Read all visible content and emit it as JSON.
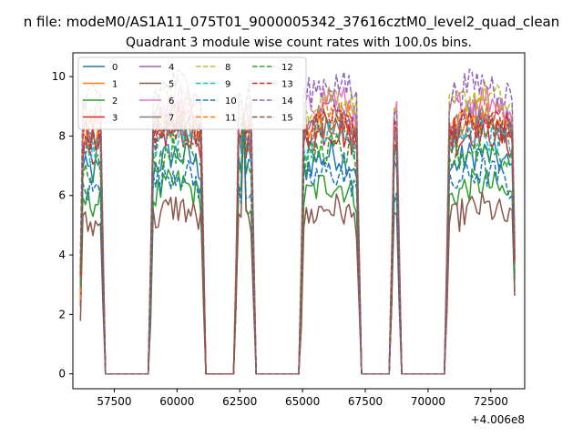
{
  "suptitle": "n file: modeM0/AS1A11_075T01_9000005342_37616cztM0_level2_quad_clean",
  "chart_data": {
    "type": "line",
    "title": "Quadrant 3 module wise count rates with 100.0s bins.",
    "xlabel": "",
    "ylabel": "",
    "x_offset_label": "+4.006e8",
    "xlim": [
      55850,
      73850
    ],
    "ylim": [
      -0.5,
      10.8
    ],
    "xticks": [
      57500,
      60000,
      62500,
      65000,
      67500,
      70000,
      72500
    ],
    "yticks": [
      0,
      2,
      4,
      6,
      8,
      10
    ],
    "grid": false,
    "legend": {
      "placement": "top-left",
      "columns": 4
    },
    "gti_intervals": [
      [
        56150,
        57100
      ],
      [
        58900,
        61050
      ],
      [
        62300,
        63050
      ],
      [
        64950,
        67300
      ],
      [
        68550,
        68850
      ],
      [
        70750,
        73450
      ]
    ],
    "spikes": [
      {
        "x": 62650,
        "y": 8.6
      },
      {
        "x": 68700,
        "y": 8.9
      }
    ],
    "series": [
      {
        "name": "0",
        "color": "#1f77b4",
        "dash": false,
        "level": 6.8
      },
      {
        "name": "1",
        "color": "#ff7f0e",
        "dash": false,
        "level": 7.9
      },
      {
        "name": "2",
        "color": "#2ca02c",
        "dash": false,
        "level": 5.8
      },
      {
        "name": "3",
        "color": "#d62728",
        "dash": false,
        "level": 7.6
      },
      {
        "name": "4",
        "color": "#9467bd",
        "dash": false,
        "level": 8.3
      },
      {
        "name": "5",
        "color": "#8c564b",
        "dash": false,
        "level": 5.0
      },
      {
        "name": "6",
        "color": "#e377c2",
        "dash": false,
        "level": 8.7
      },
      {
        "name": "7",
        "color": "#7f7f7f",
        "dash": false,
        "level": 8.0
      },
      {
        "name": "8",
        "color": "#bcbd22",
        "dash": true,
        "level": 8.8
      },
      {
        "name": "9",
        "color": "#17becf",
        "dash": true,
        "level": 7.5
      },
      {
        "name": "10",
        "color": "#1f77b4",
        "dash": true,
        "level": 6.2
      },
      {
        "name": "11",
        "color": "#ff7f0e",
        "dash": true,
        "level": 8.2
      },
      {
        "name": "12",
        "color": "#2ca02c",
        "dash": true,
        "level": 7.0
      },
      {
        "name": "13",
        "color": "#d62728",
        "dash": true,
        "level": 8.0
      },
      {
        "name": "14",
        "color": "#9467bd",
        "dash": true,
        "level": 9.2
      },
      {
        "name": "15",
        "color": "#8c564b",
        "dash": true,
        "level": 7.8
      }
    ]
  }
}
